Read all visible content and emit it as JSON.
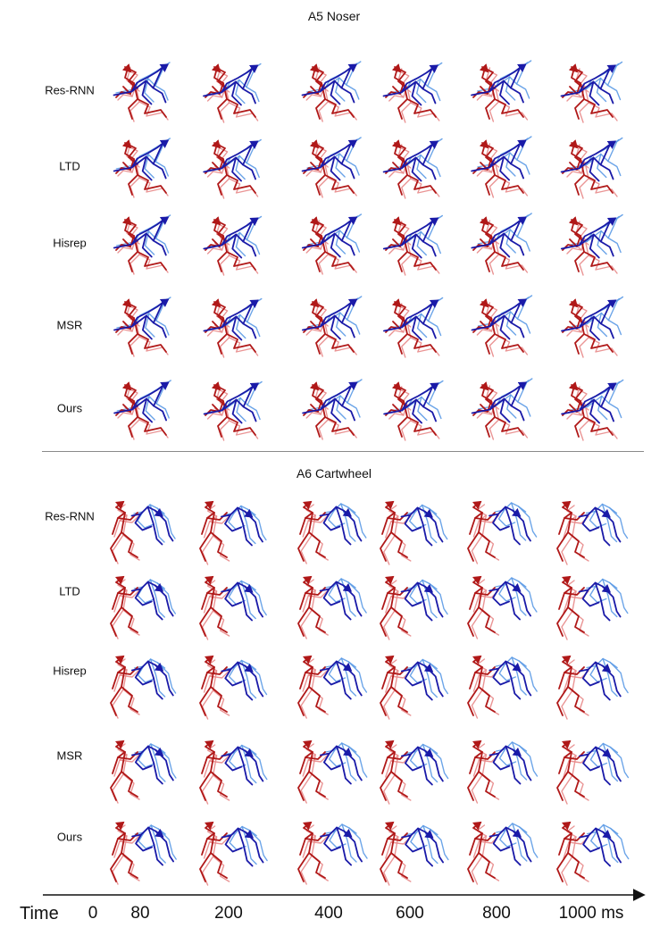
{
  "colors": {
    "gt": "#b01818",
    "gt_light": "#e88a8a",
    "pred": "#1a1aa8",
    "pred_light": "#5b9ae6"
  },
  "sections": [
    {
      "title": "A5 Noser",
      "rows": [
        "Res-RNN",
        "LTD",
        "Hisrep",
        "MSR",
        "Ours"
      ]
    },
    {
      "title": "A6 Cartwheel",
      "rows": [
        "Res-RNN",
        "LTD",
        "Hisrep",
        "MSR",
        "Ours"
      ]
    }
  ],
  "time_axis": {
    "label": "Time",
    "ticks": [
      "0",
      "80",
      "200",
      "400",
      "600",
      "800",
      "1000 ms"
    ]
  }
}
